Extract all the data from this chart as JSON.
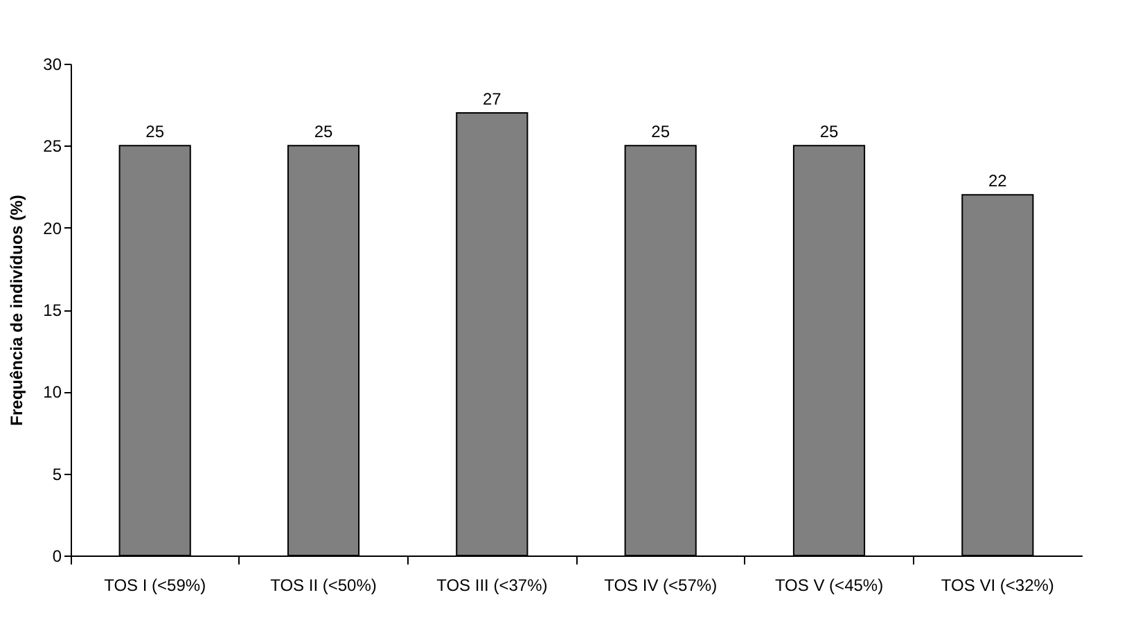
{
  "chart_data": {
    "type": "bar",
    "ylabel": "Frequência de indivíduos (%)",
    "categories": [
      "TOS I (<59%)",
      "TOS II (<50%)",
      "TOS III (<37%)",
      "TOS IV (<57%)",
      "TOS V (<45%)",
      "TOS VI (<32%)"
    ],
    "values": [
      25,
      25,
      27,
      25,
      25,
      22
    ],
    "color": "#808080",
    "ylim": [
      0,
      30
    ],
    "yticks": [
      0,
      5,
      10,
      15,
      20,
      25,
      30
    ],
    "grid": false,
    "data_labels": true
  }
}
